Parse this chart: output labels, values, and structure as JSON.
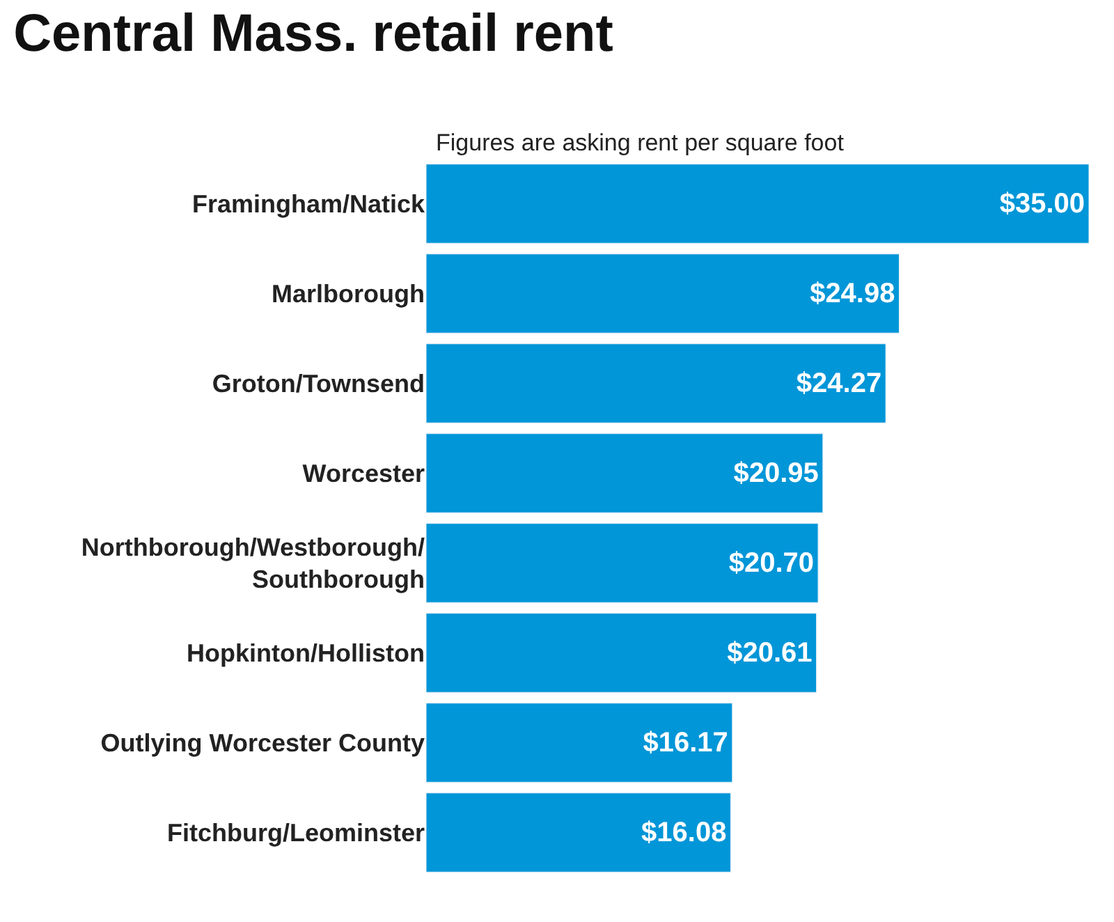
{
  "chart_data": {
    "type": "bar",
    "orientation": "horizontal",
    "title": "Central Mass. retail rent",
    "subtitle": "Figures are asking rent per square foot",
    "categories": [
      "Framingham/Natick",
      "Marlborough",
      "Groton/Townsend",
      "Worcester",
      "Northborough/Westborough/\nSouthborough",
      "Hopkinton/Holliston",
      "Outlying Worcester County",
      "Fitchburg/Leominster"
    ],
    "values": [
      35.0,
      24.98,
      24.27,
      20.95,
      20.7,
      20.61,
      16.17,
      16.08
    ],
    "value_labels": [
      "$35.00",
      "$24.98",
      "$24.27",
      "$20.95",
      "$20.70",
      "$20.61",
      "$16.17",
      "$16.08"
    ],
    "color": "#0096d8"
  }
}
